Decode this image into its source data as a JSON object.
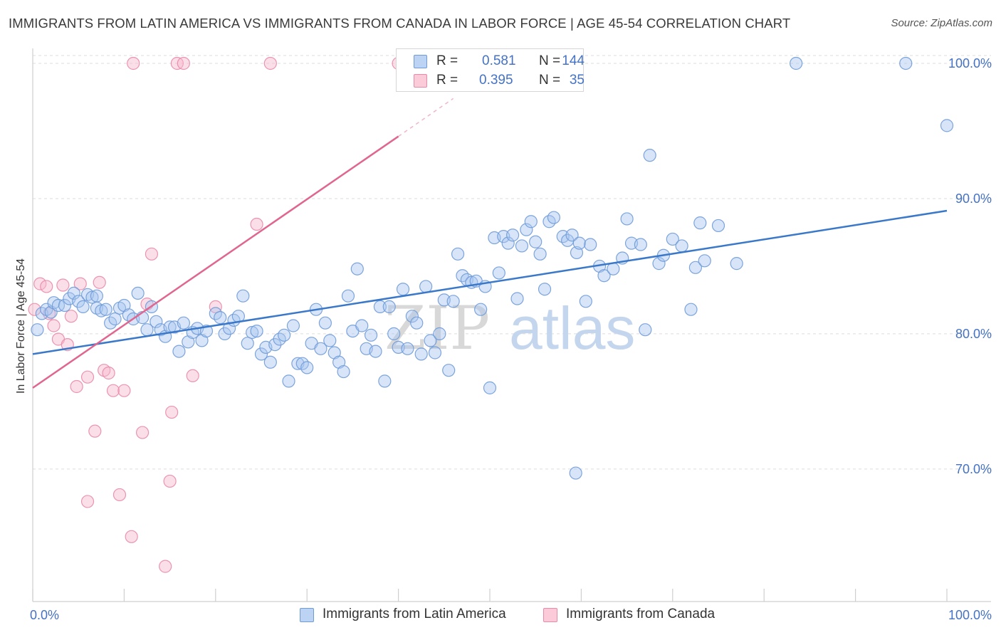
{
  "header": {
    "title": "IMMIGRANTS FROM LATIN AMERICA VS IMMIGRANTS FROM CANADA IN LABOR FORCE | AGE 45-54 CORRELATION CHART",
    "source": "Source: ZipAtlas.com"
  },
  "watermark": {
    "zip": "ZIP",
    "atlas": "atlas"
  },
  "legend": {
    "rows": [
      {
        "r_label": "R =",
        "r_value": "0.581",
        "n_label": "N =",
        "n_value": "144",
        "color": "#a9c6ef"
      },
      {
        "r_label": "R =",
        "r_value": "0.395",
        "n_label": "N =",
        "n_value": "35",
        "color": "#f7b8cb"
      }
    ]
  },
  "bottom_legend": {
    "series1": "Immigrants from Latin America",
    "series2": "Immigrants from Canada"
  },
  "colors": {
    "blue_fill": "#a9c6ef",
    "blue_stroke": "#6f9bd8",
    "blue_line": "#3a78c9",
    "pink_fill": "#f7b8cb",
    "pink_stroke": "#e98aa8",
    "pink_line": "#e0668f",
    "grid": "#dcdcdc",
    "tick_text": "#4472c4"
  },
  "chart_data": {
    "type": "scatter",
    "title": "IMMIGRANTS FROM LATIN AMERICA VS IMMIGRANTS FROM CANADA IN LABOR FORCE | AGE 45-54 CORRELATION CHART",
    "xlabel": "",
    "ylabel": "In Labor Force | Age 45-54",
    "xlim": [
      0,
      100
    ],
    "ylim": [
      60.2,
      101
    ],
    "x_tick_labels": [
      "0.0%",
      "100.0%"
    ],
    "y_ticks": [
      70,
      80,
      90,
      100
    ],
    "y_tick_labels": [
      "70.0%",
      "80.0%",
      "90.0%",
      "100.0%"
    ],
    "grid": true,
    "legend_position": "top-center",
    "series": [
      {
        "name": "Immigrants from Latin America",
        "R": 0.581,
        "N": 144,
        "trend": {
          "x": [
            0,
            100
          ],
          "y": [
            78.5,
            89.1
          ]
        },
        "points": [
          [
            0.5,
            80.3
          ],
          [
            1.0,
            81.5
          ],
          [
            1.5,
            81.8
          ],
          [
            2.0,
            81.6
          ],
          [
            2.3,
            82.3
          ],
          [
            2.8,
            82.1
          ],
          [
            3.5,
            82.1
          ],
          [
            4.0,
            82.6
          ],
          [
            4.5,
            83.0
          ],
          [
            5.0,
            82.4
          ],
          [
            5.5,
            82.0
          ],
          [
            6.0,
            82.9
          ],
          [
            6.5,
            82.7
          ],
          [
            7.0,
            81.9
          ],
          [
            7.5,
            81.7
          ],
          [
            8.0,
            81.8
          ],
          [
            8.5,
            80.8
          ],
          [
            9.0,
            81.1
          ],
          [
            9.5,
            81.9
          ],
          [
            10.0,
            82.1
          ],
          [
            10.5,
            81.4
          ],
          [
            11.0,
            81.1
          ],
          [
            11.5,
            83.0
          ],
          [
            12.0,
            81.2
          ],
          [
            12.5,
            80.3
          ],
          [
            13.0,
            82.0
          ],
          [
            13.5,
            80.9
          ],
          [
            14.0,
            80.3
          ],
          [
            14.5,
            79.8
          ],
          [
            15.0,
            80.5
          ],
          [
            15.5,
            80.5
          ],
          [
            16.0,
            78.7
          ],
          [
            16.5,
            80.8
          ],
          [
            17.0,
            79.4
          ],
          [
            17.5,
            80.1
          ],
          [
            18.0,
            80.4
          ],
          [
            18.5,
            79.5
          ],
          [
            19.0,
            80.2
          ],
          [
            20.0,
            81.5
          ],
          [
            20.5,
            81.2
          ],
          [
            21.0,
            80.0
          ],
          [
            21.5,
            80.4
          ],
          [
            22.0,
            81.0
          ],
          [
            22.5,
            81.3
          ],
          [
            23.0,
            82.8
          ],
          [
            23.5,
            79.3
          ],
          [
            24.0,
            80.1
          ],
          [
            24.5,
            80.2
          ],
          [
            25.0,
            78.5
          ],
          [
            25.5,
            79.0
          ],
          [
            26.0,
            77.9
          ],
          [
            26.5,
            79.2
          ],
          [
            27.0,
            79.6
          ],
          [
            27.5,
            79.9
          ],
          [
            28.0,
            76.5
          ],
          [
            28.5,
            80.6
          ],
          [
            29.0,
            77.8
          ],
          [
            29.5,
            77.8
          ],
          [
            30.0,
            77.5
          ],
          [
            30.5,
            79.3
          ],
          [
            31.0,
            81.8
          ],
          [
            31.5,
            78.9
          ],
          [
            32.0,
            80.8
          ],
          [
            32.5,
            79.5
          ],
          [
            33.0,
            78.6
          ],
          [
            33.5,
            77.9
          ],
          [
            34.0,
            77.2
          ],
          [
            34.5,
            82.8
          ],
          [
            35.0,
            80.2
          ],
          [
            35.5,
            84.8
          ],
          [
            36.0,
            80.6
          ],
          [
            36.5,
            78.9
          ],
          [
            37.0,
            79.9
          ],
          [
            37.5,
            78.7
          ],
          [
            38.0,
            82.0
          ],
          [
            38.5,
            76.5
          ],
          [
            39.0,
            82.0
          ],
          [
            39.5,
            80.0
          ],
          [
            40.0,
            79.0
          ],
          [
            40.5,
            83.3
          ],
          [
            41.0,
            78.9
          ],
          [
            41.5,
            81.3
          ],
          [
            42.0,
            80.8
          ],
          [
            42.5,
            78.5
          ],
          [
            43.0,
            83.5
          ],
          [
            43.5,
            79.5
          ],
          [
            44.0,
            78.6
          ],
          [
            44.5,
            80.0
          ],
          [
            45.0,
            82.5
          ],
          [
            45.5,
            77.3
          ],
          [
            46.0,
            82.4
          ],
          [
            46.5,
            85.9
          ],
          [
            47.0,
            84.3
          ],
          [
            47.5,
            84.0
          ],
          [
            48.0,
            83.8
          ],
          [
            48.5,
            83.9
          ],
          [
            49.0,
            81.8
          ],
          [
            49.5,
            83.5
          ],
          [
            50.0,
            76.0
          ],
          [
            50.5,
            87.1
          ],
          [
            51.0,
            84.5
          ],
          [
            51.5,
            87.2
          ],
          [
            52.0,
            86.7
          ],
          [
            52.5,
            87.3
          ],
          [
            53.0,
            82.6
          ],
          [
            53.5,
            86.5
          ],
          [
            54.0,
            87.7
          ],
          [
            54.5,
            88.3
          ],
          [
            55.0,
            86.8
          ],
          [
            55.5,
            85.9
          ],
          [
            56.0,
            83.3
          ],
          [
            56.5,
            88.3
          ],
          [
            57.0,
            88.6
          ],
          [
            58.0,
            87.2
          ],
          [
            58.5,
            86.9
          ],
          [
            59.0,
            87.3
          ],
          [
            59.5,
            86.0
          ],
          [
            59.8,
            86.7
          ],
          [
            60.5,
            82.4
          ],
          [
            61.0,
            86.6
          ],
          [
            62.0,
            85.0
          ],
          [
            62.5,
            84.3
          ],
          [
            63.5,
            84.8
          ],
          [
            64.5,
            85.6
          ],
          [
            65.0,
            88.5
          ],
          [
            65.5,
            86.7
          ],
          [
            66.5,
            86.6
          ],
          [
            67.0,
            80.3
          ],
          [
            67.5,
            93.2
          ],
          [
            68.5,
            85.2
          ],
          [
            69.0,
            85.8
          ],
          [
            70.0,
            87.0
          ],
          [
            71.0,
            86.5
          ],
          [
            72.0,
            81.8
          ],
          [
            72.5,
            84.9
          ],
          [
            73.0,
            88.2
          ],
          [
            73.5,
            85.4
          ],
          [
            75.0,
            88.0
          ],
          [
            77.0,
            85.2
          ],
          [
            83.5,
            100.0
          ],
          [
            95.5,
            100.0
          ],
          [
            100.0,
            95.4
          ],
          [
            59.4,
            69.7
          ],
          [
            7.0,
            82.8
          ]
        ]
      },
      {
        "name": "Immigrants from Canada",
        "R": 0.395,
        "N": 35,
        "trend": {
          "x": [
            0,
            40
          ],
          "y": [
            76.0,
            94.6
          ]
        },
        "trend_dashed": {
          "x": [
            40,
            46
          ],
          "y": [
            94.6,
            97.4
          ]
        },
        "points": [
          [
            0.2,
            81.8
          ],
          [
            0.8,
            83.7
          ],
          [
            1.5,
            83.5
          ],
          [
            1.8,
            81.5
          ],
          [
            2.3,
            80.6
          ],
          [
            2.8,
            79.6
          ],
          [
            3.3,
            83.6
          ],
          [
            3.8,
            79.2
          ],
          [
            4.2,
            81.3
          ],
          [
            4.8,
            76.1
          ],
          [
            5.2,
            83.7
          ],
          [
            6.0,
            76.8
          ],
          [
            6.8,
            72.8
          ],
          [
            7.3,
            83.8
          ],
          [
            7.8,
            77.3
          ],
          [
            8.3,
            77.1
          ],
          [
            8.8,
            75.8
          ],
          [
            9.5,
            68.1
          ],
          [
            10.0,
            75.8
          ],
          [
            10.8,
            65.0
          ],
          [
            11.0,
            100.0
          ],
          [
            12.5,
            82.2
          ],
          [
            12.0,
            72.7
          ],
          [
            13.0,
            85.9
          ],
          [
            14.5,
            62.8
          ],
          [
            15.0,
            69.1
          ],
          [
            15.2,
            74.2
          ],
          [
            15.8,
            100.0
          ],
          [
            16.5,
            100.0
          ],
          [
            17.5,
            76.9
          ],
          [
            20.0,
            82.0
          ],
          [
            24.5,
            88.1
          ],
          [
            26.0,
            100.0
          ],
          [
            40.0,
            100.0
          ],
          [
            6.0,
            67.6
          ]
        ]
      }
    ]
  }
}
